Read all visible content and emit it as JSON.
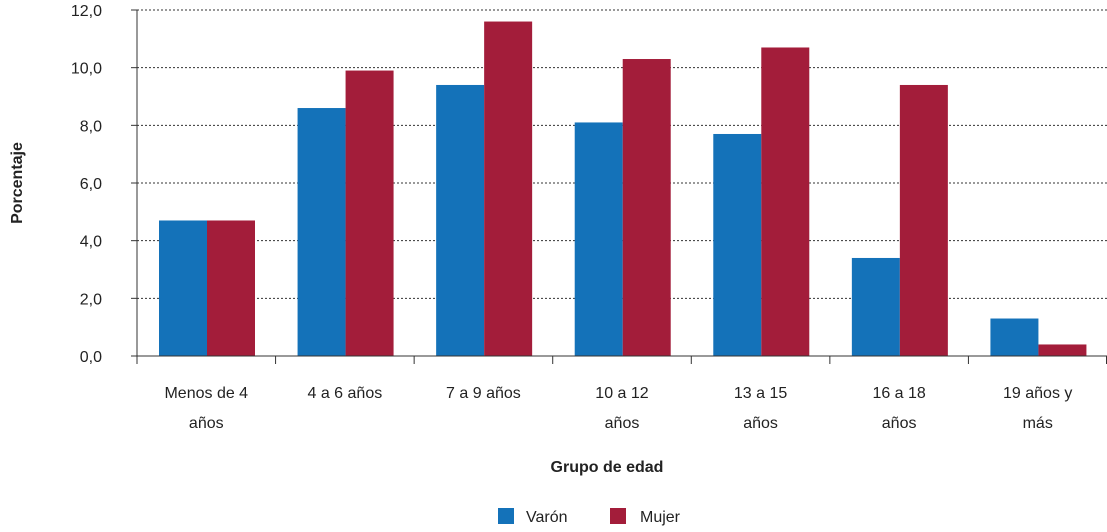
{
  "chart_data": {
    "type": "bar",
    "xlabel": "Grupo de edad",
    "ylabel": "Porcentaje",
    "categories": [
      [
        "Menos de 4",
        "años"
      ],
      [
        "4 a 6 años"
      ],
      [
        "7 a 9 años"
      ],
      [
        "10 a 12",
        "años"
      ],
      [
        "13 a 15",
        "años"
      ],
      [
        "16 a 18",
        "años"
      ],
      [
        "19 años y",
        "más"
      ]
    ],
    "series": [
      {
        "name": "Varón",
        "color": "#1472b9",
        "values": [
          4.7,
          8.6,
          9.4,
          8.1,
          7.7,
          3.4,
          1.3
        ]
      },
      {
        "name": "Mujer",
        "color": "#a31d3a",
        "values": [
          4.7,
          9.9,
          11.6,
          10.3,
          10.7,
          9.4,
          0.4
        ]
      }
    ],
    "ylim": [
      0,
      12
    ],
    "yticks": [
      "0,0",
      "2,0",
      "4,0",
      "6,0",
      "8,0",
      "10,0",
      "12,0"
    ],
    "grid": true,
    "legend_position": "bottom-center"
  }
}
